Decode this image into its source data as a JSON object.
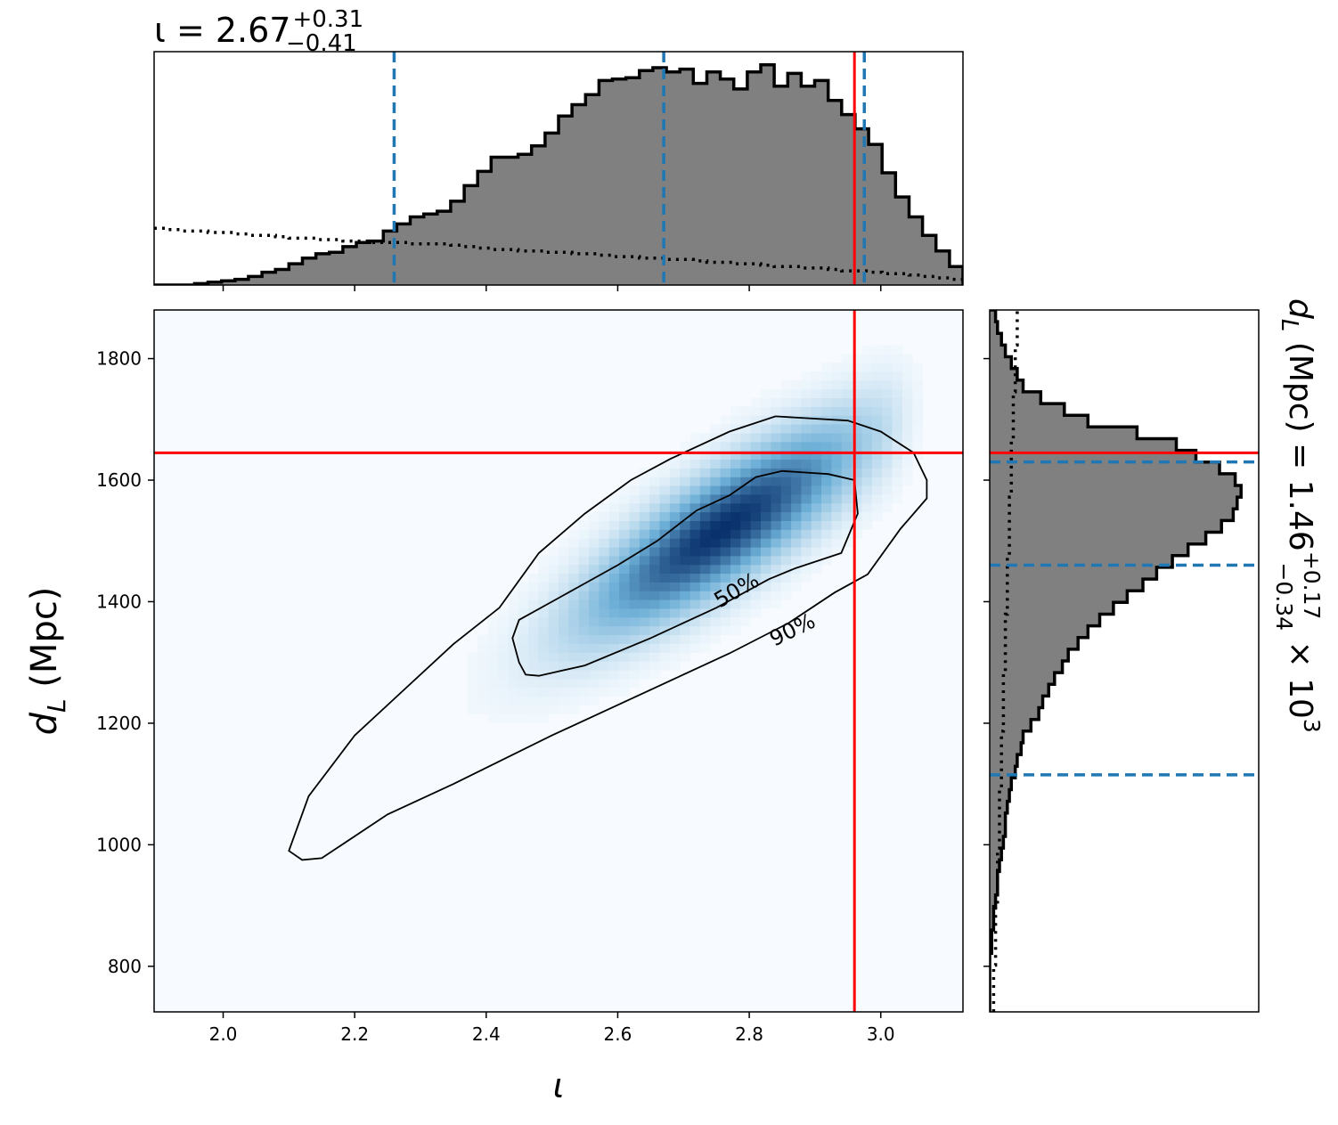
{
  "chart_data": {
    "type": "joint-plot",
    "colors": {
      "heatmap_max": "#08306b",
      "heatmap_min": "#f7fbff",
      "truth_line": "#ff0000",
      "quantile_line": "#1f77b4",
      "hist_fill": "#808080",
      "hist_edge": "#000000"
    },
    "top_title": {
      "prefix": "ι = 2.67",
      "sup": "+0.31",
      "sub": "−0.41"
    },
    "right_title": {
      "prefix": "d",
      "prefix_sub": "L",
      "mid": " (Mpc) = 1.46",
      "sup": "+0.17",
      "sub": "−0.34",
      "suffix": " × 10",
      "exp": "3"
    },
    "xlabel": "ι",
    "ylabel": {
      "main": "d",
      "sub": "L",
      "unit": " (Mpc)"
    },
    "xlim": [
      1.895,
      3.125
    ],
    "ylim": [
      725,
      1880
    ],
    "xticks": [
      2.0,
      2.2,
      2.4,
      2.6,
      2.8,
      3.0
    ],
    "xtick_labels": [
      "2.0",
      "2.2",
      "2.4",
      "2.6",
      "2.8",
      "3.0"
    ],
    "yticks": [
      800,
      1000,
      1200,
      1400,
      1600,
      1800
    ],
    "ytick_labels": [
      "800",
      "1000",
      "1200",
      "1400",
      "1600",
      "1800"
    ],
    "truth": {
      "iota": 2.96,
      "dL": 1645
    },
    "iota_quantiles": [
      2.26,
      2.67,
      2.975
    ],
    "dL_quantiles": [
      1115,
      1460,
      1630
    ],
    "density": {
      "mean": [
        2.76,
        1520
      ],
      "sigma": [
        0.13,
        105
      ],
      "correlation": 0.82
    },
    "contours": [
      {
        "label": "50%",
        "points": [
          [
            2.46,
            1280
          ],
          [
            2.45,
            1300
          ],
          [
            2.44,
            1340
          ],
          [
            2.45,
            1370
          ],
          [
            2.5,
            1400
          ],
          [
            2.55,
            1430
          ],
          [
            2.6,
            1460
          ],
          [
            2.66,
            1500
          ],
          [
            2.72,
            1550
          ],
          [
            2.77,
            1575
          ],
          [
            2.81,
            1605
          ],
          [
            2.85,
            1615
          ],
          [
            2.92,
            1610
          ],
          [
            2.96,
            1600
          ],
          [
            2.965,
            1545
          ],
          [
            2.94,
            1480
          ],
          [
            2.87,
            1455
          ],
          [
            2.83,
            1437
          ],
          [
            2.75,
            1390
          ],
          [
            2.65,
            1340
          ],
          [
            2.55,
            1295
          ],
          [
            2.48,
            1278
          ]
        ]
      },
      {
        "label": "90%",
        "points": [
          [
            2.12,
            975
          ],
          [
            2.1,
            990
          ],
          [
            2.13,
            1080
          ],
          [
            2.2,
            1180
          ],
          [
            2.28,
            1260
          ],
          [
            2.35,
            1330
          ],
          [
            2.42,
            1390
          ],
          [
            2.48,
            1480
          ],
          [
            2.55,
            1545
          ],
          [
            2.62,
            1600
          ],
          [
            2.68,
            1635
          ],
          [
            2.77,
            1680
          ],
          [
            2.84,
            1705
          ],
          [
            2.95,
            1698
          ],
          [
            3.0,
            1680
          ],
          [
            3.05,
            1645
          ],
          [
            3.07,
            1600
          ],
          [
            3.07,
            1570
          ],
          [
            3.03,
            1520
          ],
          [
            2.98,
            1445
          ],
          [
            2.93,
            1415
          ],
          [
            2.86,
            1365
          ],
          [
            2.77,
            1315
          ],
          [
            2.65,
            1255
          ],
          [
            2.5,
            1180
          ],
          [
            2.35,
            1100
          ],
          [
            2.25,
            1050
          ],
          [
            2.15,
            978
          ]
        ]
      }
    ],
    "contour_labels": [
      {
        "text": "50%",
        "x": 2.78,
        "y": 1420,
        "angle": -30
      },
      {
        "text": "90%",
        "x": 2.865,
        "y": 1355,
        "angle": -26
      }
    ],
    "iota_hist": {
      "edges_start": 1.895,
      "bin_width": 0.0205,
      "counts": [
        0,
        0,
        0,
        1,
        2,
        3,
        4,
        6,
        9,
        11,
        15,
        19,
        22,
        23,
        27,
        30,
        31,
        38,
        43,
        48,
        50,
        52,
        59,
        70,
        80,
        90,
        90,
        92,
        98,
        107,
        119,
        127,
        134,
        144,
        145,
        146,
        151,
        153,
        150,
        152,
        142,
        150,
        145,
        138,
        150,
        155,
        140,
        149,
        140,
        144,
        130,
        120,
        110,
        99,
        79,
        62,
        48,
        35,
        24,
        13
      ]
    },
    "iota_prior": {
      "edges_start": 1.895,
      "bin_width": 0.0205,
      "counts": [
        40,
        39,
        38,
        38,
        37,
        37,
        36,
        35,
        35,
        34,
        33,
        33,
        32,
        32,
        31,
        31,
        30,
        30,
        30,
        29,
        29,
        29,
        28,
        27,
        26,
        25,
        25,
        24,
        24,
        23,
        23,
        22,
        22,
        21,
        20,
        20,
        19,
        19,
        18,
        18,
        17,
        16,
        16,
        15,
        15,
        14,
        13,
        13,
        12,
        12,
        11,
        10,
        10,
        9,
        8,
        8,
        7,
        6,
        5,
        4
      ]
    },
    "dL_hist": {
      "edges_start": 725,
      "bin_width": 19.25,
      "counts": [
        0,
        0,
        0,
        0,
        0,
        1,
        1,
        2,
        2,
        3,
        4,
        4,
        5,
        6,
        7,
        8,
        8,
        9,
        10,
        11,
        13,
        14,
        16,
        17,
        21,
        25,
        27,
        30,
        33,
        37,
        40,
        45,
        50,
        56,
        63,
        70,
        78,
        85,
        93,
        101,
        110,
        118,
        124,
        126,
        128,
        125,
        117,
        105,
        95,
        75,
        50,
        38,
        26,
        17,
        14,
        11,
        8,
        6,
        4,
        3
      ]
    },
    "dL_prior": {
      "edges_start": 725,
      "bin_width": 19.25,
      "counts": [
        2,
        2,
        2,
        2,
        3,
        3,
        3,
        3,
        3,
        4,
        4,
        4,
        4,
        4,
        5,
        5,
        5,
        5,
        5,
        6,
        6,
        6,
        6,
        6,
        7,
        7,
        7,
        7,
        7,
        8,
        8,
        8,
        8,
        8,
        9,
        9,
        9,
        9,
        9,
        10,
        10,
        10,
        10,
        10,
        11,
        11,
        11,
        11,
        11,
        12,
        12,
        12,
        12,
        13,
        13,
        13,
        13,
        14,
        14,
        14
      ]
    }
  }
}
